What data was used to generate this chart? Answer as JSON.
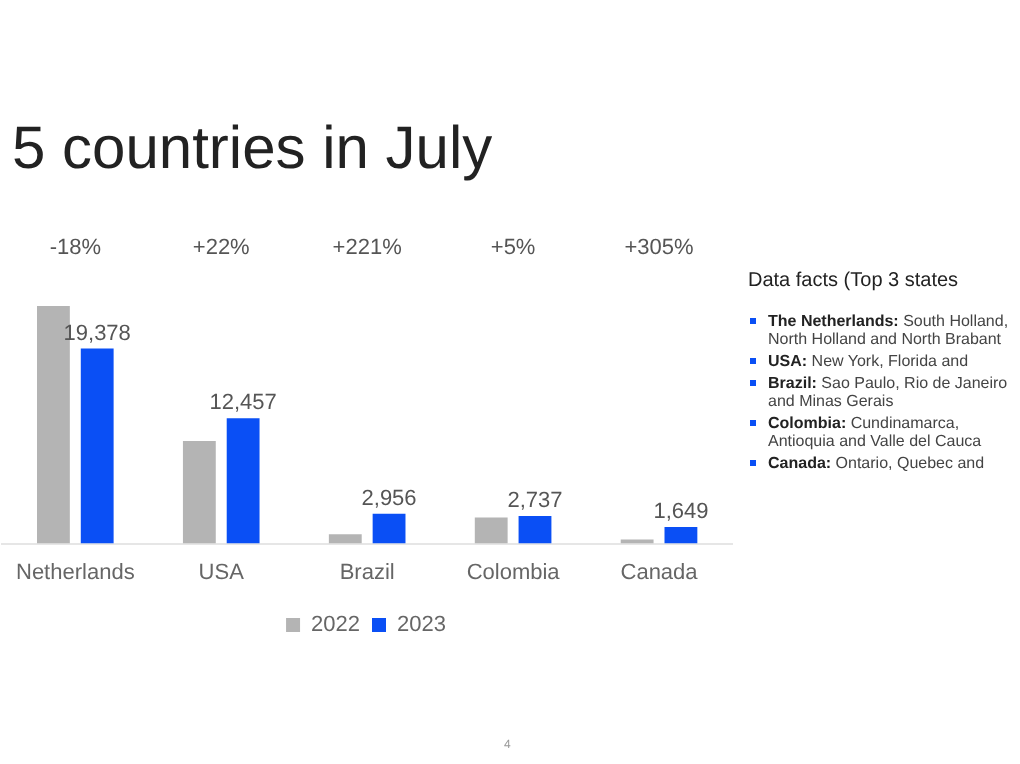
{
  "chart_data": {
    "type": "bar",
    "title": "5 countries in July",
    "categories": [
      "Netherlands",
      "USA",
      "Brazil",
      "Colombia",
      "Canada"
    ],
    "series": [
      {
        "name": "2022",
        "color": "#b4b4b4",
        "values": [
          23600,
          10200,
          920,
          2600,
          410
        ]
      },
      {
        "name": "2023",
        "color": "#0a4ff5",
        "values": [
          19378,
          12457,
          2956,
          2737,
          1649
        ],
        "value_labels": [
          "19,378",
          "12,457",
          "2,956",
          "2,737",
          "1,649"
        ]
      }
    ],
    "legend": "bottom",
    "grid": false,
    "annotations": [
      "-18%",
      "+22%",
      "+221%",
      "+5%",
      "+305%",
      "Data facts (Top 3 states",
      "The Netherlands: South Holland, North Holland and North Brabant",
      "USA: New York, Florida and",
      "Brazil: Sao Paulo, Rio de Janeiro and Minas Gerais",
      "Colombia: Cundinamarca, Antioquia and Valle del Cauca",
      "Canada: Ontario, Quebec and",
      "4"
    ]
  }
}
